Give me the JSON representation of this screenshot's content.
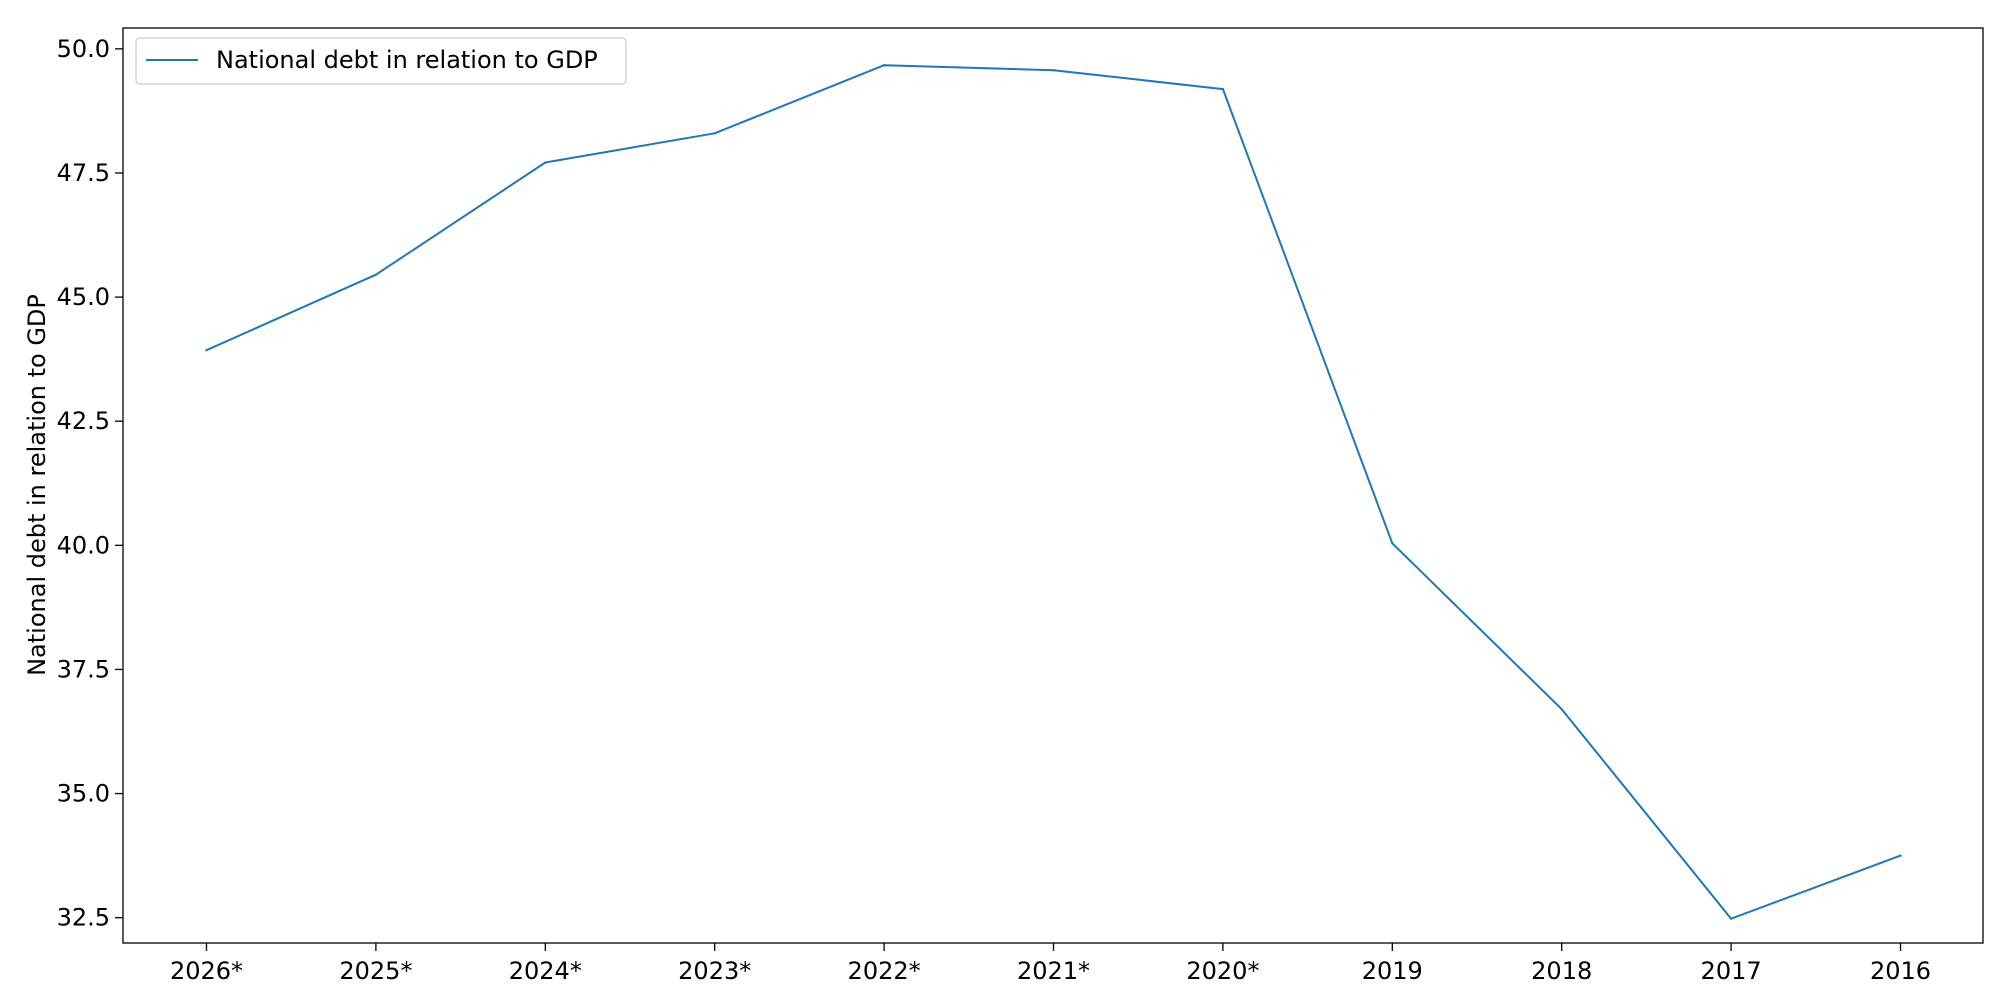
{
  "chart_data": {
    "type": "line",
    "title": "",
    "xlabel": "",
    "ylabel": "National debt in relation to GDP",
    "categories": [
      "2026*",
      "2025*",
      "2024*",
      "2023*",
      "2022*",
      "2021*",
      "2020*",
      "2019",
      "2018",
      "2017",
      "2016"
    ],
    "series": [
      {
        "name": "National debt in relation to GDP",
        "color": "#1f77b4",
        "values": [
          43.93,
          45.45,
          47.71,
          48.3,
          49.67,
          49.57,
          49.19,
          40.04,
          36.7,
          32.48,
          33.75
        ]
      }
    ],
    "ylim": [
      31.99,
      50.42
    ],
    "yticks": [
      32.5,
      35.0,
      37.5,
      40.0,
      42.5,
      45.0,
      47.5,
      50.0
    ],
    "ytick_labels": [
      "32.5",
      "35.0",
      "37.5",
      "40.0",
      "42.5",
      "45.0",
      "47.5",
      "50.0"
    ],
    "grid": false,
    "legend_position": "top-left"
  }
}
